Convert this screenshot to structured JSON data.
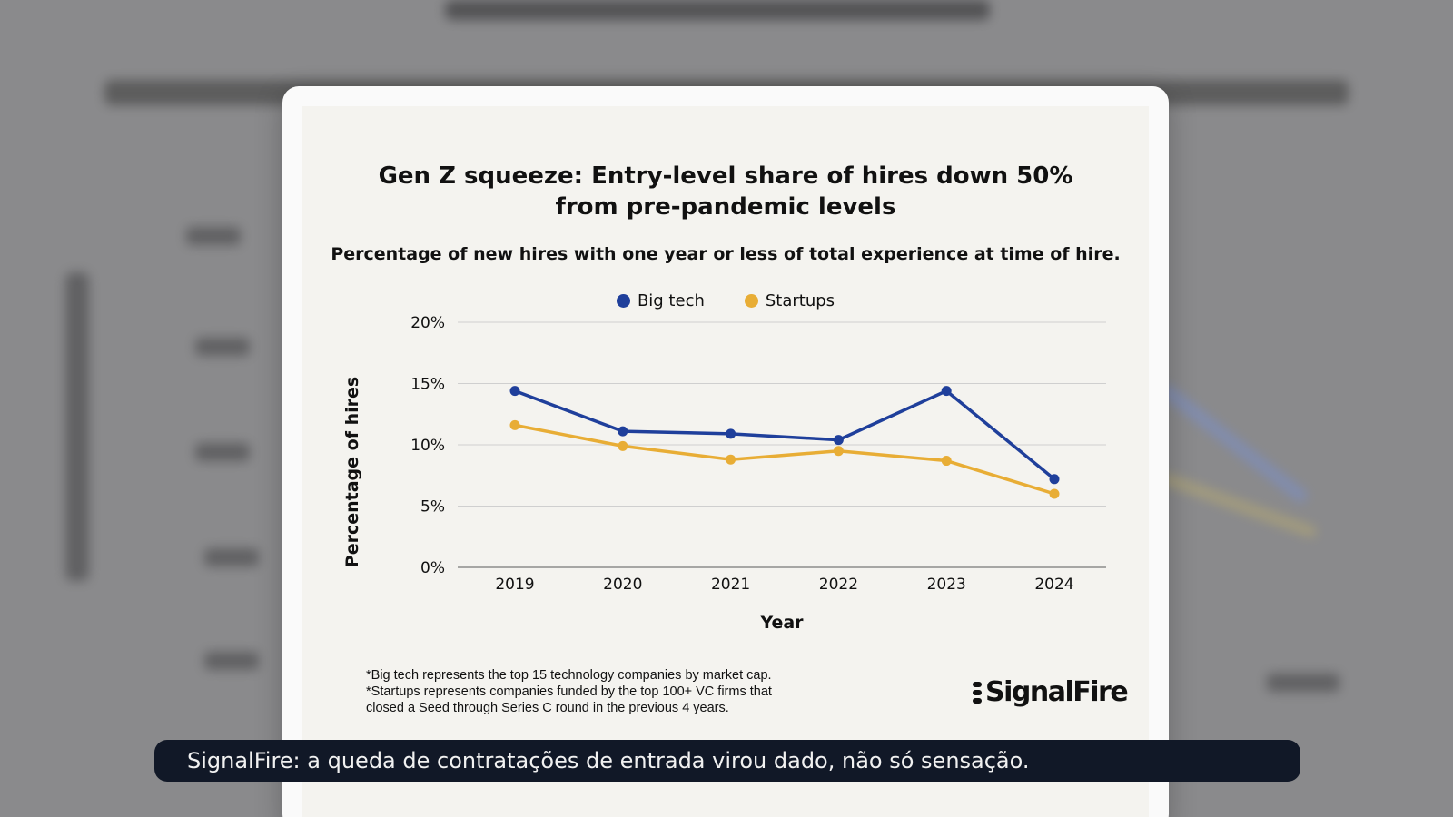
{
  "chart_data": {
    "type": "line",
    "title": "Gen Z squeeze: Entry-level share of hires down 50%\nfrom pre-pandemic levels",
    "subtitle": "Percentage of new hires with one year or less of total experience at time of hire.",
    "xlabel": "Year",
    "ylabel": "Percentage of hires",
    "x": [
      "2019",
      "2020",
      "2021",
      "2022",
      "2023",
      "2024"
    ],
    "ylim": [
      0,
      20
    ],
    "yticks": [
      0,
      5,
      10,
      15,
      20
    ],
    "ytick_labels": [
      "0%",
      "5%",
      "10%",
      "15%",
      "20%"
    ],
    "grid": "horizontal",
    "legend_placement": "top-center",
    "series": [
      {
        "name": "Big tech",
        "color": "#1f3f9b",
        "values": [
          14.4,
          11.1,
          10.9,
          10.4,
          14.4,
          7.2
        ]
      },
      {
        "name": "Startups",
        "color": "#e8ad35",
        "values": [
          11.6,
          9.9,
          8.8,
          9.5,
          8.7,
          6.0
        ]
      }
    ]
  },
  "footnotes": [
    "*Big tech represents the top 15 technology companies by market cap.",
    "*Startups represents companies funded by the top 100+ VC firms that",
    "closed a Seed through Series C round in the previous 4 years."
  ],
  "logo_text": "SignalFire",
  "caption": "SignalFire: a queda de contratações de entrada virou dado, não só sensação."
}
